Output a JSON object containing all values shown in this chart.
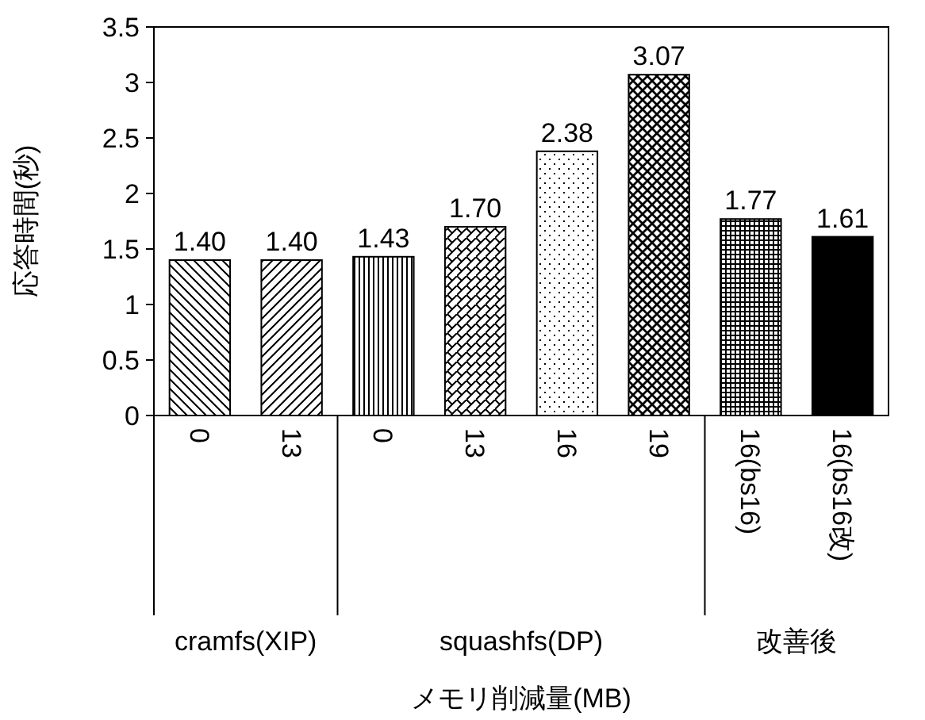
{
  "chart_data": {
    "type": "bar",
    "ylabel": "応答時間(秒)",
    "xlabel": "メモリ削減量(MB)",
    "categories": [
      "0",
      "13",
      "0",
      "13",
      "16",
      "19",
      "16(bs16)",
      "16(bs16改)"
    ],
    "values": [
      1.4,
      1.4,
      1.43,
      1.7,
      2.38,
      3.07,
      1.77,
      1.61
    ],
    "value_labels": [
      "1.40",
      "1.40",
      "1.43",
      "1.70",
      "2.38",
      "3.07",
      "1.77",
      "1.61"
    ],
    "colors": [
      "#000000",
      "#000000",
      "#000000",
      "#000000",
      "#000000",
      "#000000",
      "#000000",
      "#000000"
    ],
    "ylim": [
      0,
      3.5
    ],
    "yticks": [
      0,
      0.5,
      1,
      1.5,
      2,
      2.5,
      3,
      3.5
    ],
    "annotations": [
      "cramfs(XIP)",
      "squashfs(DP)",
      "改善後"
    ],
    "grid": false
  }
}
